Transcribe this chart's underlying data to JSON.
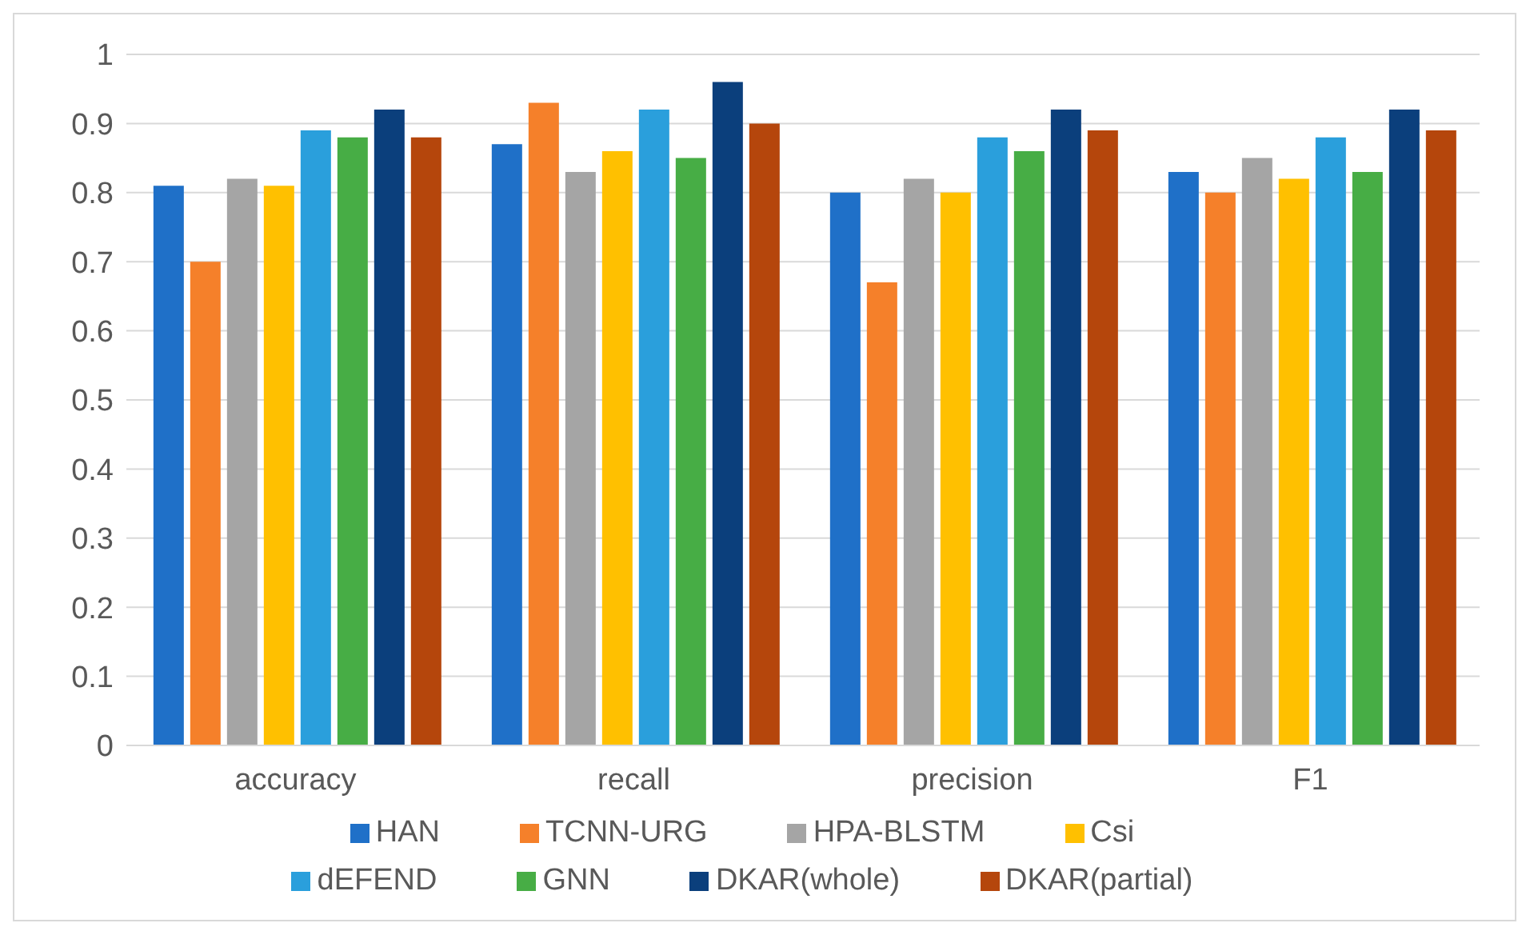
{
  "chart_data": {
    "type": "bar",
    "categories": [
      "accuracy",
      "recall",
      "precision",
      "F1"
    ],
    "series": [
      {
        "name": "HAN",
        "color": "#1f70c8",
        "values": [
          0.81,
          0.87,
          0.8,
          0.83
        ]
      },
      {
        "name": "TCNN-URG",
        "color": "#f5802a",
        "values": [
          0.7,
          0.93,
          0.67,
          0.8
        ]
      },
      {
        "name": "HPA-BLSTM",
        "color": "#a5a5a5",
        "values": [
          0.82,
          0.83,
          0.82,
          0.85
        ]
      },
      {
        "name": "Csi",
        "color": "#ffc000",
        "values": [
          0.81,
          0.86,
          0.8,
          0.82
        ]
      },
      {
        "name": "dEFEND",
        "color": "#2a9fdc",
        "values": [
          0.89,
          0.92,
          0.88,
          0.88
        ]
      },
      {
        "name": "GNN",
        "color": "#47ad45",
        "values": [
          0.88,
          0.85,
          0.86,
          0.83
        ]
      },
      {
        "name": "DKAR(whole)",
        "color": "#0b3f7c",
        "values": [
          0.92,
          0.96,
          0.92,
          0.92
        ]
      },
      {
        "name": "DKAR(partial)",
        "color": "#b5460c",
        "values": [
          0.88,
          0.9,
          0.89,
          0.89
        ]
      }
    ],
    "ylim": [
      0,
      1
    ],
    "yticks": [
      0,
      0.1,
      0.2,
      0.3,
      0.4,
      0.5,
      0.6,
      0.7,
      0.8,
      0.9,
      1
    ],
    "grid": "y",
    "legend": "bottom"
  }
}
